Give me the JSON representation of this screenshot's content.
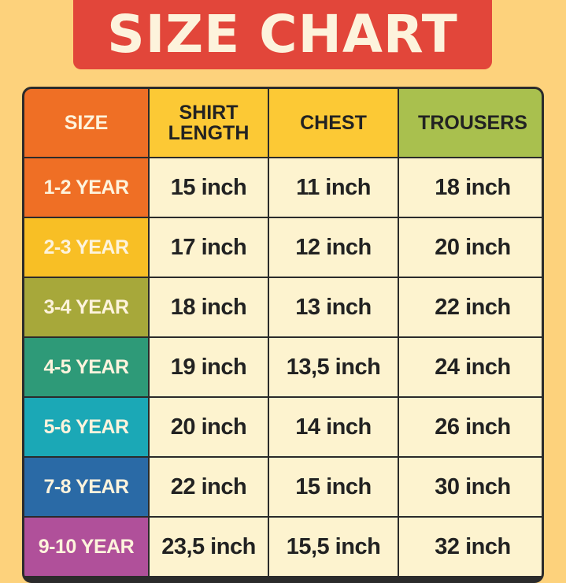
{
  "title": "SIZE CHART",
  "headers": [
    {
      "label": "SIZE",
      "color": "#ef6f25",
      "text_color": "#fdf3dc"
    },
    {
      "label": "SHIRT LENGTH",
      "color": "#fcc935",
      "text_color": "#222222"
    },
    {
      "label": "CHEST",
      "color": "#fcc935",
      "text_color": "#222222"
    },
    {
      "label": "TROUSERS",
      "color": "#a9c04e",
      "text_color": "#222222"
    }
  ],
  "rows": [
    {
      "size": "1-2 YEAR",
      "color": "#ef6f25",
      "shirt_length": "15 inch",
      "chest": "11 inch",
      "trousers": "18 inch"
    },
    {
      "size": "2-3 YEAR",
      "color": "#f8bf25",
      "shirt_length": "17 inch",
      "chest": "12 inch",
      "trousers": "20 inch"
    },
    {
      "size": "3-4 YEAR",
      "color": "#a7a83a",
      "shirt_length": "18 inch",
      "chest": "13 inch",
      "trousers": "22 inch"
    },
    {
      "size": "4-5 YEAR",
      "color": "#2e9a78",
      "shirt_length": "19 inch",
      "chest": "13,5 inch",
      "trousers": "24 inch"
    },
    {
      "size": "5-6 YEAR",
      "color": "#1ba8b6",
      "shirt_length": "20 inch",
      "chest": "14 inch",
      "trousers": "26 inch"
    },
    {
      "size": "7-8 YEAR",
      "color": "#2a6aa6",
      "shirt_length": "22 inch",
      "chest": "15 inch",
      "trousers": "30 inch"
    },
    {
      "size": "9-10 YEAR",
      "color": "#b0509a",
      "shirt_length": "23,5 inch",
      "chest": "15,5 inch",
      "trousers": "32 inch"
    }
  ],
  "colors": {
    "background": "#fdd27c",
    "banner": "#e2463a",
    "cell": "#fdf3cf"
  }
}
